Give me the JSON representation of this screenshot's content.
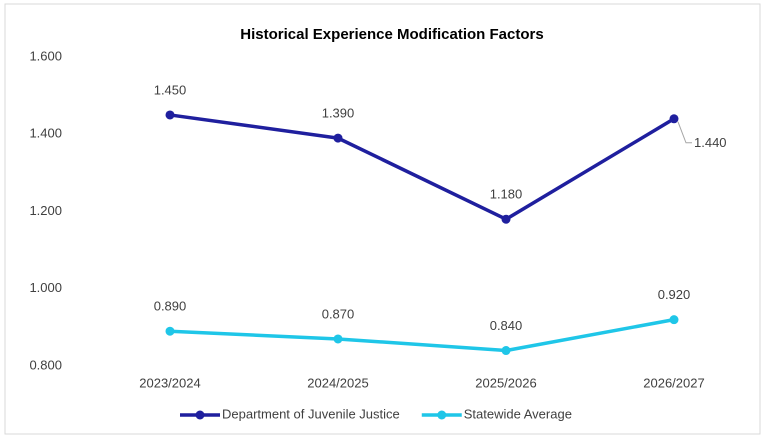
{
  "chart_data": {
    "type": "line",
    "title": "Historical Experience Modification Factors",
    "categories": [
      "2023/2024",
      "2024/2025",
      "2025/2026",
      "2026/2027"
    ],
    "series": [
      {
        "name": "Department of Juvenile Justice",
        "color": "#1f1f9e",
        "values": [
          1.45,
          1.39,
          1.18,
          1.44
        ],
        "value_labels": [
          "1.450",
          "1.390",
          "1.180",
          "1.440"
        ]
      },
      {
        "name": "Statewide Average",
        "color": "#1fc6e8",
        "values": [
          0.89,
          0.87,
          0.84,
          0.92
        ],
        "value_labels": [
          "0.890",
          "0.870",
          "0.840",
          "0.920"
        ]
      }
    ],
    "ylim": [
      0.8,
      1.6
    ],
    "yticks": [
      {
        "value": 0.8,
        "label": "0.800"
      },
      {
        "value": 1.0,
        "label": "1.000"
      },
      {
        "value": 1.2,
        "label": "1.200"
      },
      {
        "value": 1.4,
        "label": "1.400"
      },
      {
        "value": 1.6,
        "label": "1.600"
      }
    ],
    "grid": false,
    "legend": "bottom"
  }
}
